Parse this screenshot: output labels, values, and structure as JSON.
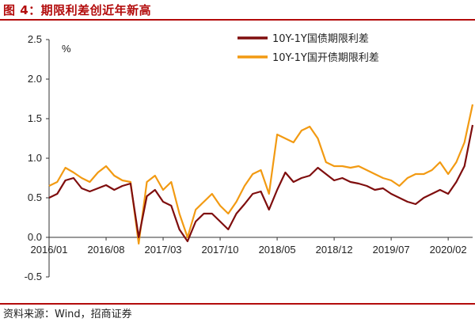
{
  "figure": {
    "title": "图 4：期限利差创近年新高",
    "source": "资料来源：Wind，招商证券"
  },
  "chart_data": {
    "type": "line",
    "ylabel": "%",
    "ylim": [
      -0.5,
      2.5
    ],
    "yticks": [
      "2.5",
      "2.0",
      "1.5",
      "1.0",
      "0.5",
      "0.0",
      "-0.5"
    ],
    "xticks": [
      "2016/01",
      "2016/08",
      "2017/03",
      "2017/10",
      "2018/05",
      "2018/12",
      "2019/07",
      "2020/02"
    ],
    "xrange": [
      "2016-01",
      "2020-05"
    ],
    "legend_position": "top-right",
    "grid": false,
    "series": [
      {
        "name": "10Y-1Y国债期限利差",
        "color": "#7f0e0e",
        "x": [
          "2016-01",
          "2016-02",
          "2016-03",
          "2016-04",
          "2016-05",
          "2016-06",
          "2016-07",
          "2016-08",
          "2016-09",
          "2016-10",
          "2016-11",
          "2016-12",
          "2017-01",
          "2017-02",
          "2017-03",
          "2017-04",
          "2017-05",
          "2017-06",
          "2017-07",
          "2017-08",
          "2017-09",
          "2017-10",
          "2017-11",
          "2017-12",
          "2018-01",
          "2018-02",
          "2018-03",
          "2018-04",
          "2018-05",
          "2018-06",
          "2018-07",
          "2018-08",
          "2018-09",
          "2018-10",
          "2018-11",
          "2018-12",
          "2019-01",
          "2019-02",
          "2019-03",
          "2019-04",
          "2019-05",
          "2019-06",
          "2019-07",
          "2019-08",
          "2019-09",
          "2019-10",
          "2019-11",
          "2019-12",
          "2020-01",
          "2020-02",
          "2020-03",
          "2020-04",
          "2020-05"
        ],
        "values": [
          0.5,
          0.55,
          0.72,
          0.75,
          0.62,
          0.58,
          0.62,
          0.66,
          0.6,
          0.65,
          0.68,
          0.0,
          0.52,
          0.6,
          0.45,
          0.4,
          0.1,
          -0.05,
          0.2,
          0.3,
          0.3,
          0.2,
          0.1,
          0.3,
          0.42,
          0.55,
          0.58,
          0.35,
          0.6,
          0.82,
          0.7,
          0.75,
          0.78,
          0.88,
          0.8,
          0.72,
          0.75,
          0.7,
          0.68,
          0.65,
          0.6,
          0.62,
          0.55,
          0.5,
          0.45,
          0.42,
          0.5,
          0.55,
          0.6,
          0.55,
          0.7,
          0.9,
          1.42
        ]
      },
      {
        "name": "10Y-1Y国开债期限利差",
        "color": "#f29a12",
        "x": [
          "2016-01",
          "2016-02",
          "2016-03",
          "2016-04",
          "2016-05",
          "2016-06",
          "2016-07",
          "2016-08",
          "2016-09",
          "2016-10",
          "2016-11",
          "2016-12",
          "2017-01",
          "2017-02",
          "2017-03",
          "2017-04",
          "2017-05",
          "2017-06",
          "2017-07",
          "2017-08",
          "2017-09",
          "2017-10",
          "2017-11",
          "2017-12",
          "2018-01",
          "2018-02",
          "2018-03",
          "2018-04",
          "2018-05",
          "2018-06",
          "2018-07",
          "2018-08",
          "2018-09",
          "2018-10",
          "2018-11",
          "2018-12",
          "2019-01",
          "2019-02",
          "2019-03",
          "2019-04",
          "2019-05",
          "2019-06",
          "2019-07",
          "2019-08",
          "2019-09",
          "2019-10",
          "2019-11",
          "2019-12",
          "2020-01",
          "2020-02",
          "2020-03",
          "2020-04",
          "2020-05"
        ],
        "values": [
          0.65,
          0.7,
          0.88,
          0.82,
          0.75,
          0.7,
          0.82,
          0.9,
          0.78,
          0.72,
          0.7,
          -0.08,
          0.7,
          0.78,
          0.6,
          0.7,
          0.3,
          0.0,
          0.35,
          0.45,
          0.55,
          0.4,
          0.3,
          0.45,
          0.65,
          0.8,
          0.85,
          0.55,
          1.3,
          1.25,
          1.2,
          1.35,
          1.4,
          1.25,
          0.95,
          0.9,
          0.9,
          0.88,
          0.9,
          0.85,
          0.8,
          0.75,
          0.72,
          0.65,
          0.75,
          0.8,
          0.8,
          0.85,
          0.95,
          0.8,
          0.95,
          1.2,
          1.68
        ]
      }
    ]
  }
}
